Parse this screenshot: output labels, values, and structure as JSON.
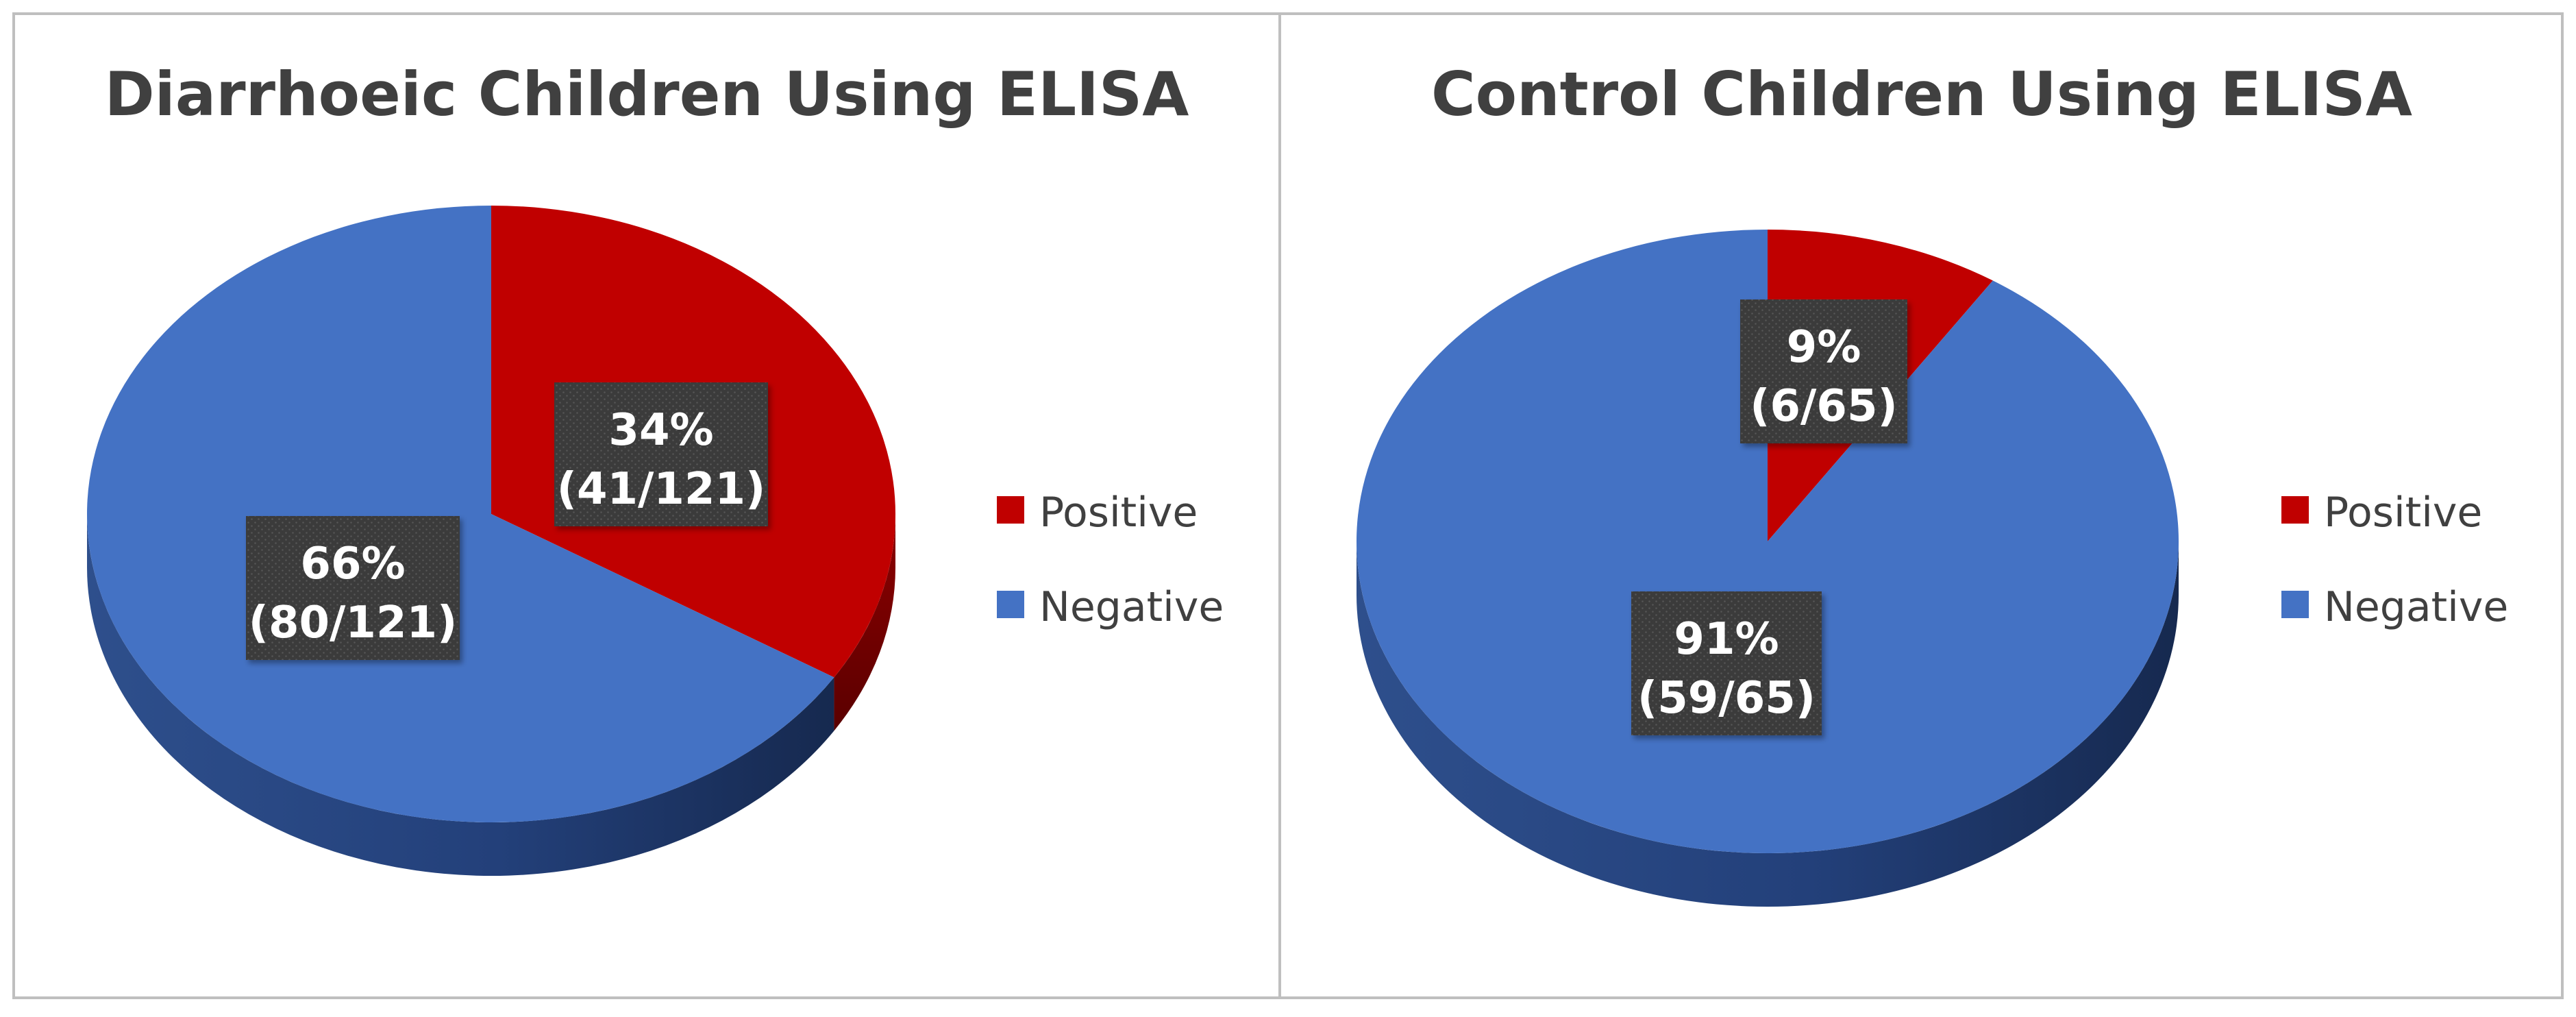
{
  "colors": {
    "positive": "#C00000",
    "negative": "#4472C4",
    "label_bg": "#3A3A3A",
    "label_text": "#FFFFFF",
    "title_text": "#404040",
    "legend_text": "#404040",
    "frame": "#BFBFBF"
  },
  "chart_data": [
    {
      "type": "pie",
      "title": "Diarrhoeic Children Using ELISA",
      "style": "3d",
      "legend_position": "right",
      "slices": [
        {
          "name": "Positive",
          "value": 41,
          "percent_label": "34%",
          "count_label": "(41/121)"
        },
        {
          "name": "Negative",
          "value": 80,
          "percent_label": "66%",
          "count_label": "(80/121)"
        }
      ]
    },
    {
      "type": "pie",
      "title": "Control Children Using ELISA",
      "style": "3d",
      "legend_position": "right",
      "slices": [
        {
          "name": "Positive",
          "value": 6,
          "percent_label": "9%",
          "count_label": "(6/65)"
        },
        {
          "name": "Negative",
          "value": 59,
          "percent_label": "91%",
          "count_label": "(59/65)"
        }
      ]
    }
  ]
}
